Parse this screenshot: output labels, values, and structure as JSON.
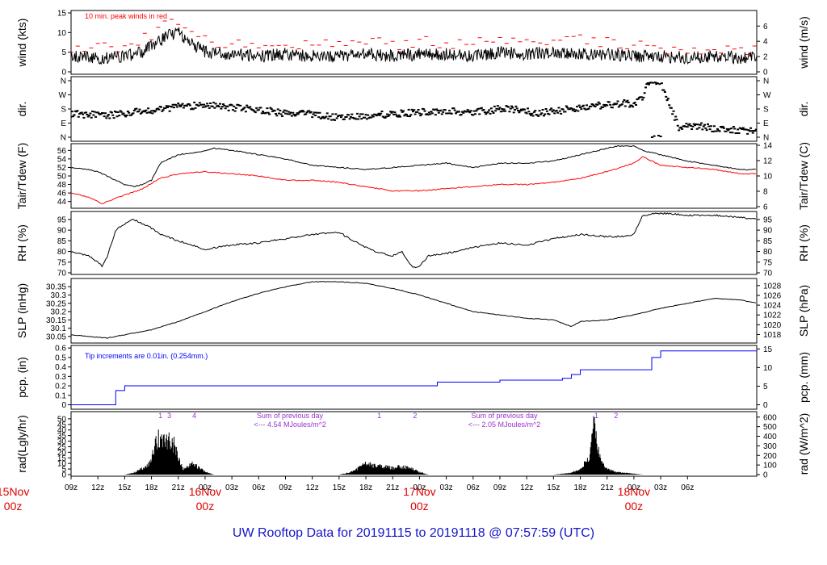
{
  "chart_data": {
    "type": "line",
    "title": "UW Rooftop Data for 20191115  to  20191118 @ 07:57:59  (UTC)",
    "x_range_hours": [
      0,
      76.75
    ],
    "x_ticks": [
      {
        "h": 0,
        "label": "09z"
      },
      {
        "h": 3,
        "label": "12z"
      },
      {
        "h": 6,
        "label": "15z"
      },
      {
        "h": 9,
        "label": "18z"
      },
      {
        "h": 12,
        "label": "21z"
      },
      {
        "h": 15,
        "label": "00z"
      },
      {
        "h": 18,
        "label": "03z"
      },
      {
        "h": 21,
        "label": "06z"
      },
      {
        "h": 24,
        "label": "09z"
      },
      {
        "h": 27,
        "label": "12z"
      },
      {
        "h": 30,
        "label": "15z"
      },
      {
        "h": 33,
        "label": "18z"
      },
      {
        "h": 36,
        "label": "21z"
      },
      {
        "h": 39,
        "label": "00z"
      },
      {
        "h": 42,
        "label": "03z"
      },
      {
        "h": 45,
        "label": "06z"
      },
      {
        "h": 48,
        "label": "09z"
      },
      {
        "h": 51,
        "label": "12z"
      },
      {
        "h": 54,
        "label": "15z"
      },
      {
        "h": 57,
        "label": "18z"
      },
      {
        "h": 60,
        "label": "21z"
      },
      {
        "h": 63,
        "label": "00z"
      },
      {
        "h": 66,
        "label": "03z"
      },
      {
        "h": 69,
        "label": "06z"
      }
    ],
    "day_labels": [
      {
        "h": -6.5,
        "day": "15Nov",
        "time": "00z"
      },
      {
        "h": 15,
        "day": "16Nov",
        "time": "00z"
      },
      {
        "h": 39,
        "day": "17Nov",
        "time": "00z"
      },
      {
        "h": 63,
        "day": "18Nov",
        "time": "00z"
      }
    ],
    "panels": [
      {
        "id": "wind",
        "ylabel": "wind (kts)",
        "ylabel2": "wind (m/s)",
        "ylim": [
          0,
          15
        ],
        "ticks": [
          0,
          5,
          10,
          15
        ],
        "rlim": [
          0,
          7.72
        ],
        "rticks": [
          0,
          2,
          4,
          6
        ],
        "annotation": "10 min. peak winds in red",
        "series": [
          {
            "name": "wind speed",
            "color": "#000000",
            "x": [
              0,
              4,
              6,
              8,
              9,
              10,
              11,
              12,
              13,
              15,
              18,
              21,
              24,
              27,
              30,
              33,
              36,
              39,
              42,
              45,
              48,
              51,
              54,
              57,
              60,
              63,
              66,
              69,
              72,
              75,
              76.75
            ],
            "y": [
              4,
              3.5,
              4,
              5,
              6.5,
              8,
              9.5,
              10,
              8,
              5,
              4.5,
              4,
              4.5,
              4,
              4,
              4.5,
              4,
              4.5,
              4.5,
              4,
              5,
              4.5,
              5,
              4.5,
              4.5,
              4,
              4,
              3.5,
              4,
              3.5,
              3.5
            ]
          },
          {
            "name": "10 min. peak winds",
            "color": "#ff0000",
            "style": "dashes",
            "x": [
              0,
              4,
              6,
              8,
              9,
              10,
              11,
              12,
              13,
              15,
              18,
              21,
              24,
              27,
              30,
              33,
              36,
              39,
              42,
              45,
              48,
              51,
              54,
              57,
              60,
              63,
              66,
              69,
              72,
              75,
              76.75
            ],
            "y": [
              6.5,
              6,
              6.5,
              8,
              9.5,
              11.5,
              12.5,
              13,
              11,
              8,
              7.5,
              7,
              7.5,
              7,
              7,
              7.5,
              7,
              7.5,
              7.5,
              7,
              8.5,
              8,
              8.5,
              8,
              7.5,
              7,
              6,
              5.5,
              6,
              5.5,
              5.5
            ]
          }
        ]
      },
      {
        "id": "dir",
        "ylabel": "dir.",
        "ylabel2": "dir.",
        "ylim": [
          0,
          360
        ],
        "ticks": [
          0,
          90,
          180,
          270,
          360
        ],
        "tick_labels": [
          "N",
          "E",
          "S",
          "W",
          "N"
        ],
        "series": [
          {
            "name": "wind direction",
            "color": "#000000",
            "style": "points",
            "x": [
              0,
              2,
              4,
              6,
              8,
              10,
              12,
              14,
              16,
              18,
              20,
              22,
              24,
              26,
              28,
              30,
              32,
              34,
              36,
              38,
              40,
              42,
              44,
              46,
              48,
              50,
              52,
              54,
              56,
              58,
              60,
              62,
              63,
              64,
              64.5,
              65,
              66,
              68,
              70,
              72,
              74,
              76.75
            ],
            "y": [
              150,
              145,
              140,
              150,
              165,
              180,
              195,
              200,
              200,
              190,
              180,
              170,
              150,
              160,
              140,
              125,
              130,
              140,
              150,
              155,
              160,
              170,
              160,
              165,
              180,
              175,
              150,
              165,
              180,
              200,
              205,
              215,
              215,
              250,
              335,
              360,
              350,
              65,
              75,
              55,
              45,
              40
            ]
          }
        ]
      },
      {
        "id": "temp",
        "ylabel": "Tair/Tdew (F)",
        "ylabel2": "Tair/Tdew (C)",
        "ylim": [
          42.8,
          57.2
        ],
        "ticks": [
          44,
          46,
          48,
          50,
          52,
          54,
          56
        ],
        "rlim": [
          6,
          14
        ],
        "rticks": [
          6,
          8,
          10,
          12,
          14
        ],
        "series": [
          {
            "name": "Tair",
            "color": "#000000",
            "x": [
              0,
              2,
              3,
              4,
              6,
              7,
              8,
              9,
              10,
              12,
              14,
              15,
              16,
              18,
              21,
              24,
              27,
              30,
              33,
              36,
              39,
              42,
              45,
              48,
              51,
              54,
              57,
              60,
              61,
              63,
              64,
              66,
              69,
              72,
              75,
              76.75
            ],
            "y": [
              52,
              51.5,
              51,
              50,
              48,
              47.5,
              48,
              49,
              53,
              55,
              55.5,
              56,
              56.5,
              56,
              55,
              54,
              52.5,
              52,
              51.5,
              52,
              52.5,
              53,
              52,
              53,
              53,
              53.5,
              55,
              56.5,
              57,
              57,
              56,
              55,
              53.5,
              52.5,
              51.5,
              51.5
            ]
          },
          {
            "name": "Tdew",
            "color": "#ff0000",
            "x": [
              0,
              1,
              2,
              3,
              3.5,
              4,
              6,
              8,
              10,
              12,
              15,
              18,
              21,
              24,
              27,
              30,
              33,
              36,
              39,
              42,
              45,
              48,
              51,
              54,
              57,
              60,
              63,
              64,
              66,
              69,
              72,
              75,
              76.75
            ],
            "y": [
              46,
              45.5,
              45,
              44,
              43.5,
              44,
              45.5,
              47,
              49.5,
              50.5,
              51,
              50.5,
              50,
              49,
              49,
              48.5,
              47.5,
              46.5,
              46.5,
              47,
              47.5,
              48,
              48,
              48.5,
              49.5,
              51,
              53,
              54.5,
              52.5,
              52,
              51.5,
              50.5,
              50.5
            ]
          }
        ]
      },
      {
        "id": "rh",
        "ylabel": "RH (%)",
        "ylabel2": "RH (%)",
        "ylim": [
          70,
          98
        ],
        "ticks": [
          70,
          75,
          80,
          85,
          90,
          95
        ],
        "rticks": [
          70,
          75,
          80,
          85,
          90,
          95
        ],
        "series": [
          {
            "name": "RH",
            "color": "#000000",
            "x": [
              0,
              2,
              3,
              3.5,
              4,
              5,
              6,
              7,
              8,
              9,
              10,
              12,
              15,
              18,
              21,
              24,
              27,
              30,
              32,
              34,
              36,
              37,
              38,
              38.5,
              39,
              40,
              42,
              45,
              48,
              51,
              54,
              57,
              60,
              62,
              63,
              64,
              66,
              69,
              72,
              75,
              76.75
            ],
            "y": [
              80,
              78,
              75,
              73,
              77,
              90,
              93,
              95,
              93,
              91,
              88,
              85,
              81,
              83,
              84,
              86,
              88,
              89,
              84,
              80,
              78,
              80,
              74,
              72,
              73,
              78,
              79,
              82,
              84,
              83,
              86,
              88,
              87,
              87,
              88,
              97,
              98,
              97,
              97,
              96,
              95
            ]
          }
        ]
      },
      {
        "id": "slp",
        "ylabel": "SLP (inHg)",
        "ylabel2": "SLP (hPa)",
        "ylim": [
          30.02,
          30.39
        ],
        "ticks": [
          30.05,
          30.1,
          30.15,
          30.2,
          30.25,
          30.3,
          30.35
        ],
        "rticks": [
          1018,
          1020,
          1022,
          1024,
          1026,
          1028
        ],
        "series": [
          {
            "name": "SLP",
            "color": "#000000",
            "x": [
              0,
              2,
              4,
              6,
              9,
              12,
              15,
              18,
              21,
              24,
              27,
              30,
              33,
              36,
              39,
              42,
              45,
              48,
              51,
              54,
              56,
              57,
              60,
              63,
              66,
              69,
              72,
              75,
              76.75
            ],
            "y": [
              30.06,
              30.05,
              30.04,
              30.06,
              30.09,
              30.14,
              30.2,
              30.26,
              30.31,
              30.35,
              30.38,
              30.38,
              30.37,
              30.34,
              30.3,
              30.25,
              30.2,
              30.18,
              30.16,
              30.15,
              30.11,
              30.14,
              30.15,
              30.18,
              30.22,
              30.25,
              30.28,
              30.27,
              30.25
            ]
          }
        ]
      },
      {
        "id": "pcp",
        "ylabel": "pcp. (in)",
        "ylabel2": "pcp. (mm)",
        "ylim": [
          -0.03,
          0.61
        ],
        "ticks": [
          0,
          0.1,
          0.2,
          0.3,
          0.4,
          0.5,
          0.6
        ],
        "rlim": [
          -0.76,
          15.5
        ],
        "rticks": [
          0,
          5,
          10,
          15
        ],
        "annotation": "Tip increments are 0.01in. (0.254mm.)",
        "series": [
          {
            "name": "precipitation",
            "color": "#0000ff",
            "style": "step",
            "x": [
              0,
              4,
              5,
              6,
              20,
              40,
              41,
              48,
              55,
              56,
              57,
              63,
              65,
              66,
              76.75
            ],
            "y": [
              0,
              0,
              0.15,
              0.2,
              0.2,
              0.2,
              0.24,
              0.26,
              0.28,
              0.32,
              0.37,
              0.37,
              0.5,
              0.57,
              0.58
            ]
          }
        ]
      },
      {
        "id": "rad",
        "ylabel": "rad(Lgly/hr)",
        "ylabel2": "rad (W/m^2)",
        "ylim": [
          0,
          55
        ],
        "ticks": [
          0,
          5,
          10,
          15,
          20,
          25,
          30,
          35,
          40,
          45,
          50
        ],
        "rlim": [
          0,
          640
        ],
        "rticks": [
          0,
          100,
          200,
          300,
          400,
          500,
          600
        ],
        "annotations": [
          {
            "h": 10,
            "text": "1"
          },
          {
            "h": 11,
            "text": "3"
          },
          {
            "h": 13.8,
            "text": "4"
          },
          {
            "h": 24.5,
            "text": "Sum of previous day"
          },
          {
            "h": 24.5,
            "text": "<--- 4.54 MJoules/m^2"
          },
          {
            "h": 34.5,
            "text": "1"
          },
          {
            "h": 38.5,
            "text": "2"
          },
          {
            "h": 48.5,
            "text": "Sum of previous day"
          },
          {
            "h": 48.5,
            "text": "<--- 2.05 MJoules/m^2"
          },
          {
            "h": 58.8,
            "text": "1"
          },
          {
            "h": 61,
            "text": "2"
          }
        ],
        "series": [
          {
            "name": "solar radiation",
            "color": "#000000",
            "style": "filled",
            "x": [
              6,
              7,
              8,
              9,
              9.5,
              10,
              10.5,
              11,
              11.5,
              12,
              12.5,
              13,
              13.5,
              14,
              15,
              16,
              30,
              31,
              32,
              33,
              34,
              35,
              36,
              37,
              38,
              39,
              40,
              54,
              55,
              56,
              57,
              58,
              58.5,
              59,
              59.5,
              60,
              61,
              62,
              63,
              64
            ],
            "y": [
              0,
              2,
              7,
              15,
              40,
              42,
              38,
              42,
              35,
              20,
              6,
              8,
              12,
              10,
              3,
              0,
              0,
              2,
              6,
              14,
              10,
              9,
              8,
              9,
              7,
              3,
              0,
              0,
              1,
              2,
              6,
              20,
              55,
              28,
              14,
              6,
              3,
              2,
              1,
              0
            ]
          }
        ]
      }
    ]
  }
}
